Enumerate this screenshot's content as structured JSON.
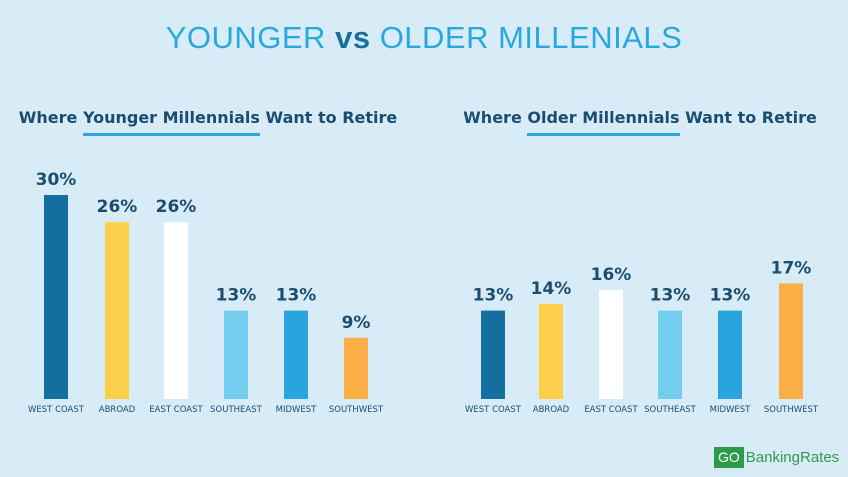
{
  "header": {
    "title_part1": "YOUNGER",
    "title_vs": "vs",
    "title_part2": "OLDER MILLENIALS"
  },
  "panels": [
    {
      "title_pre": "Where ",
      "title_highlight": "Younger Millennials",
      "title_post": " Want to Retire"
    },
    {
      "title_pre": "Where ",
      "title_highlight": "Older Millennials",
      "title_post": " Want to Retire"
    }
  ],
  "logo": {
    "go": "GO",
    "brand": "BankingRates"
  },
  "chart_data": [
    {
      "type": "bar",
      "title": "Where Younger Millennials Want to Retire",
      "categories": [
        "WEST COAST",
        "ABROAD",
        "EAST COAST",
        "SOUTHEAST",
        "MIDWEST",
        "SOUTHWEST"
      ],
      "values": [
        30,
        26,
        26,
        13,
        13,
        9
      ],
      "data_labels": [
        "30%",
        "26%",
        "26%",
        "13%",
        "13%",
        "9%"
      ],
      "colors": [
        "#146fa0",
        "#fcd04a",
        "#ffffff",
        "#72cdee",
        "#2aa4dd",
        "#fdaf47"
      ],
      "ylim": [
        0,
        30
      ]
    },
    {
      "type": "bar",
      "title": "Where Older Millennials Want to Retire",
      "categories": [
        "WEST COAST",
        "ABROAD",
        "EAST COAST",
        "SOUTHEAST",
        "MIDWEST",
        "SOUTHWEST"
      ],
      "values": [
        13,
        14,
        16,
        13,
        13,
        17
      ],
      "data_labels": [
        "13%",
        "14%",
        "16%",
        "13%",
        "13%",
        "17%"
      ],
      "colors": [
        "#146fa0",
        "#fcd04a",
        "#ffffff",
        "#72cdee",
        "#2aa4dd",
        "#fdaf47"
      ],
      "ylim": [
        0,
        30
      ]
    }
  ]
}
